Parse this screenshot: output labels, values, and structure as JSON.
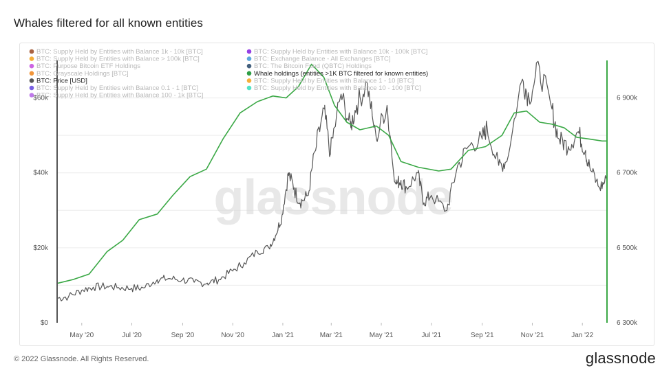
{
  "title": "Whales filtered for all known entities",
  "footer": {
    "copyright": "© 2022 Glassnode. All Rights Reserved.",
    "logo": "glassnode"
  },
  "watermark": "glassnode",
  "colors": {
    "price": "#555555",
    "whale": "#3aa845",
    "axis_marker_left": "#555555",
    "axis_marker_right": "#3aa845"
  },
  "chart_data": {
    "type": "line",
    "x_ticks": [
      "May '20",
      "Jul '20",
      "Sep '20",
      "Nov '20",
      "Jan '21",
      "Mar '21",
      "May '21",
      "Jul '21",
      "Sep '21",
      "Nov '21",
      "Jan '22"
    ],
    "x_range": [
      "2020-04-01",
      "2022-01-31"
    ],
    "y_left": {
      "ticks": [
        "$0",
        "$20k",
        "$40k",
        "$60k"
      ],
      "range": [
        0,
        70000
      ]
    },
    "y_right": {
      "ticks": [
        "6 300k",
        "6 500k",
        "6 700k",
        "6 900k"
      ],
      "range": [
        6300000,
        7000000
      ]
    },
    "legend": [
      {
        "label": "BTC: Supply Held by Entities with Balance 1k - 10k [BTC]",
        "color": "#a0522d",
        "active": false
      },
      {
        "label": "BTC: Supply Held by Entities with Balance 10k - 100k [BTC]",
        "color": "#8a2be2",
        "active": false
      },
      {
        "label": "BTC: Supply Held by Entities with Balance > 100k [BTC]",
        "color": "#f5a623",
        "active": false
      },
      {
        "label": "BTC: Exchange Balance - All Exchanges [BTC]",
        "color": "#4a9fd8",
        "active": false
      },
      {
        "label": "BTC: Purpose Bitcoin ETF Holdings",
        "color": "#c653e0",
        "active": false
      },
      {
        "label": "BTC: The Bitcoin Fund (QBTC) Holdings",
        "color": "#2f4f6f",
        "active": false
      },
      {
        "label": "BTC: Grayscale Holdings [BTC]",
        "color": "#f08a24",
        "active": false
      },
      {
        "label": "Whale holdings (entities >1K BTC filtered for known entities)",
        "color": "#2e9e46",
        "active": true
      },
      {
        "label": "BTC: Price [USD]",
        "color": "#555555",
        "active": true
      },
      {
        "label": "BTC: Supply Held by Entities with Balance 1 - 10 [BTC]",
        "color": "#f5a623",
        "active": false
      },
      {
        "label": "BTC: Supply Held by Entities with Balance 0.1 - 1 [BTC]",
        "color": "#6a4fe0",
        "active": false
      },
      {
        "label": "BTC: Supply Held by Entities with Balance 10 - 100 [BTC]",
        "color": "#40e0c0",
        "active": false
      },
      {
        "label": "BTC: Supply Held by Entities with Balance 100 - 1k [BTC]",
        "color": "#b86ae8",
        "active": false
      }
    ],
    "series": [
      {
        "name": "BTC: Price [USD]",
        "axis": "left",
        "points": [
          [
            "2020-04-01",
            6500
          ],
          [
            "2020-04-15",
            7000
          ],
          [
            "2020-05-01",
            8700
          ],
          [
            "2020-05-15",
            9500
          ],
          [
            "2020-06-01",
            9700
          ],
          [
            "2020-06-15",
            9400
          ],
          [
            "2020-07-01",
            9200
          ],
          [
            "2020-07-15",
            9300
          ],
          [
            "2020-08-01",
            11500
          ],
          [
            "2020-08-15",
            11800
          ],
          [
            "2020-09-01",
            11500
          ],
          [
            "2020-09-15",
            10800
          ],
          [
            "2020-10-01",
            10600
          ],
          [
            "2020-10-15",
            11500
          ],
          [
            "2020-11-01",
            13800
          ],
          [
            "2020-11-15",
            16000
          ],
          [
            "2020-12-01",
            19000
          ],
          [
            "2020-12-15",
            20000
          ],
          [
            "2020-12-25",
            24000
          ],
          [
            "2021-01-01",
            29000
          ],
          [
            "2021-01-08",
            40000
          ],
          [
            "2021-01-15",
            36000
          ],
          [
            "2021-01-22",
            32000
          ],
          [
            "2021-02-01",
            34000
          ],
          [
            "2021-02-10",
            46000
          ],
          [
            "2021-02-21",
            57000
          ],
          [
            "2021-02-28",
            45000
          ],
          [
            "2021-03-13",
            61000
          ],
          [
            "2021-03-25",
            52000
          ],
          [
            "2021-04-01",
            58000
          ],
          [
            "2021-04-14",
            64000
          ],
          [
            "2021-04-25",
            49000
          ],
          [
            "2021-05-08",
            58000
          ],
          [
            "2021-05-19",
            37000
          ],
          [
            "2021-05-25",
            38000
          ],
          [
            "2021-06-01",
            36000
          ],
          [
            "2021-06-15",
            40000
          ],
          [
            "2021-06-22",
            32000
          ],
          [
            "2021-07-01",
            34000
          ],
          [
            "2021-07-20",
            30000
          ],
          [
            "2021-08-01",
            41000
          ],
          [
            "2021-08-15",
            47000
          ],
          [
            "2021-09-01",
            49000
          ],
          [
            "2021-09-07",
            52000
          ],
          [
            "2021-09-21",
            42000
          ],
          [
            "2021-10-01",
            43000
          ],
          [
            "2021-10-20",
            65000
          ],
          [
            "2021-10-28",
            60000
          ],
          [
            "2021-11-10",
            68000
          ],
          [
            "2021-11-25",
            57000
          ],
          [
            "2021-12-04",
            49000
          ],
          [
            "2021-12-15",
            47000
          ],
          [
            "2021-12-27",
            51000
          ],
          [
            "2022-01-05",
            46000
          ],
          [
            "2022-01-10",
            41500
          ],
          [
            "2022-01-22",
            36000
          ],
          [
            "2022-01-31",
            38000
          ]
        ]
      },
      {
        "name": "Whale holdings (entities >1K BTC filtered for known entities)",
        "axis": "right",
        "points": [
          [
            "2020-04-01",
            6405000
          ],
          [
            "2020-04-20",
            6415000
          ],
          [
            "2020-05-10",
            6430000
          ],
          [
            "2020-06-01",
            6490000
          ],
          [
            "2020-06-20",
            6520000
          ],
          [
            "2020-07-10",
            6575000
          ],
          [
            "2020-08-01",
            6590000
          ],
          [
            "2020-08-20",
            6640000
          ],
          [
            "2020-09-10",
            6690000
          ],
          [
            "2020-09-30",
            6710000
          ],
          [
            "2020-10-20",
            6790000
          ],
          [
            "2020-11-10",
            6860000
          ],
          [
            "2020-12-01",
            6890000
          ],
          [
            "2020-12-20",
            6905000
          ],
          [
            "2021-01-05",
            6900000
          ],
          [
            "2021-01-20",
            6930000
          ],
          [
            "2021-02-05",
            6990000
          ],
          [
            "2021-02-20",
            6955000
          ],
          [
            "2021-03-05",
            6880000
          ],
          [
            "2021-03-20",
            6835000
          ],
          [
            "2021-04-05",
            6815000
          ],
          [
            "2021-04-25",
            6825000
          ],
          [
            "2021-05-10",
            6800000
          ],
          [
            "2021-05-25",
            6730000
          ],
          [
            "2021-06-15",
            6715000
          ],
          [
            "2021-07-10",
            6705000
          ],
          [
            "2021-07-25",
            6710000
          ],
          [
            "2021-08-15",
            6760000
          ],
          [
            "2021-09-05",
            6770000
          ],
          [
            "2021-09-25",
            6800000
          ],
          [
            "2021-10-10",
            6860000
          ],
          [
            "2021-10-25",
            6865000
          ],
          [
            "2021-11-10",
            6835000
          ],
          [
            "2021-11-25",
            6830000
          ],
          [
            "2021-12-10",
            6820000
          ],
          [
            "2021-12-25",
            6795000
          ],
          [
            "2022-01-10",
            6790000
          ],
          [
            "2022-01-25",
            6785000
          ],
          [
            "2022-01-31",
            6785000
          ]
        ]
      }
    ]
  }
}
